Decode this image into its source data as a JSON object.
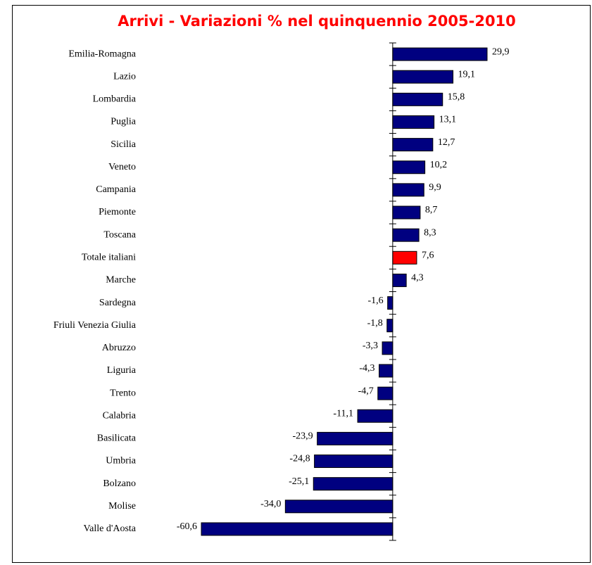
{
  "chart_data": {
    "type": "hbar",
    "title": "Arrivi  - Variazioni % nel quinquennio 2005-2010",
    "categories": [
      "Emilia-Romagna",
      "Lazio",
      "Lombardia",
      "Puglia",
      "Sicilia",
      "Veneto",
      "Campania",
      "Piemonte",
      "Toscana",
      "Totale italiani",
      "Marche",
      "Sardegna",
      "Friuli Venezia Giulia",
      "Abruzzo",
      "Liguria",
      "Trento",
      "Calabria",
      "Basilicata",
      "Umbria",
      "Bolzano",
      "Molise",
      "Valle d'Aosta"
    ],
    "values": [
      29.9,
      19.1,
      15.8,
      13.1,
      12.7,
      10.2,
      9.9,
      8.7,
      8.3,
      7.6,
      4.3,
      -1.6,
      -1.8,
      -3.3,
      -4.3,
      -4.7,
      -11.1,
      -23.9,
      -24.8,
      -25.1,
      -34.0,
      -60.6
    ],
    "value_labels": [
      "29,9",
      "19,1",
      "15,8",
      "13,1",
      "12,7",
      "10,2",
      "9,9",
      "8,7",
      "8,3",
      "7,6",
      "4,3",
      "-1,6",
      "-1,8",
      "-3,3",
      "-4,3",
      "-4,7",
      "-11,1",
      "-23,9",
      "-24,8",
      "-25,1",
      "-34,0",
      "-60,6"
    ],
    "colors": [
      "#000080",
      "#000080",
      "#000080",
      "#000080",
      "#000080",
      "#000080",
      "#000080",
      "#000080",
      "#000080",
      "#ff0000",
      "#000080",
      "#000080",
      "#000080",
      "#000080",
      "#000080",
      "#000080",
      "#000080",
      "#000080",
      "#000080",
      "#000080",
      "#000080",
      "#000080"
    ]
  }
}
